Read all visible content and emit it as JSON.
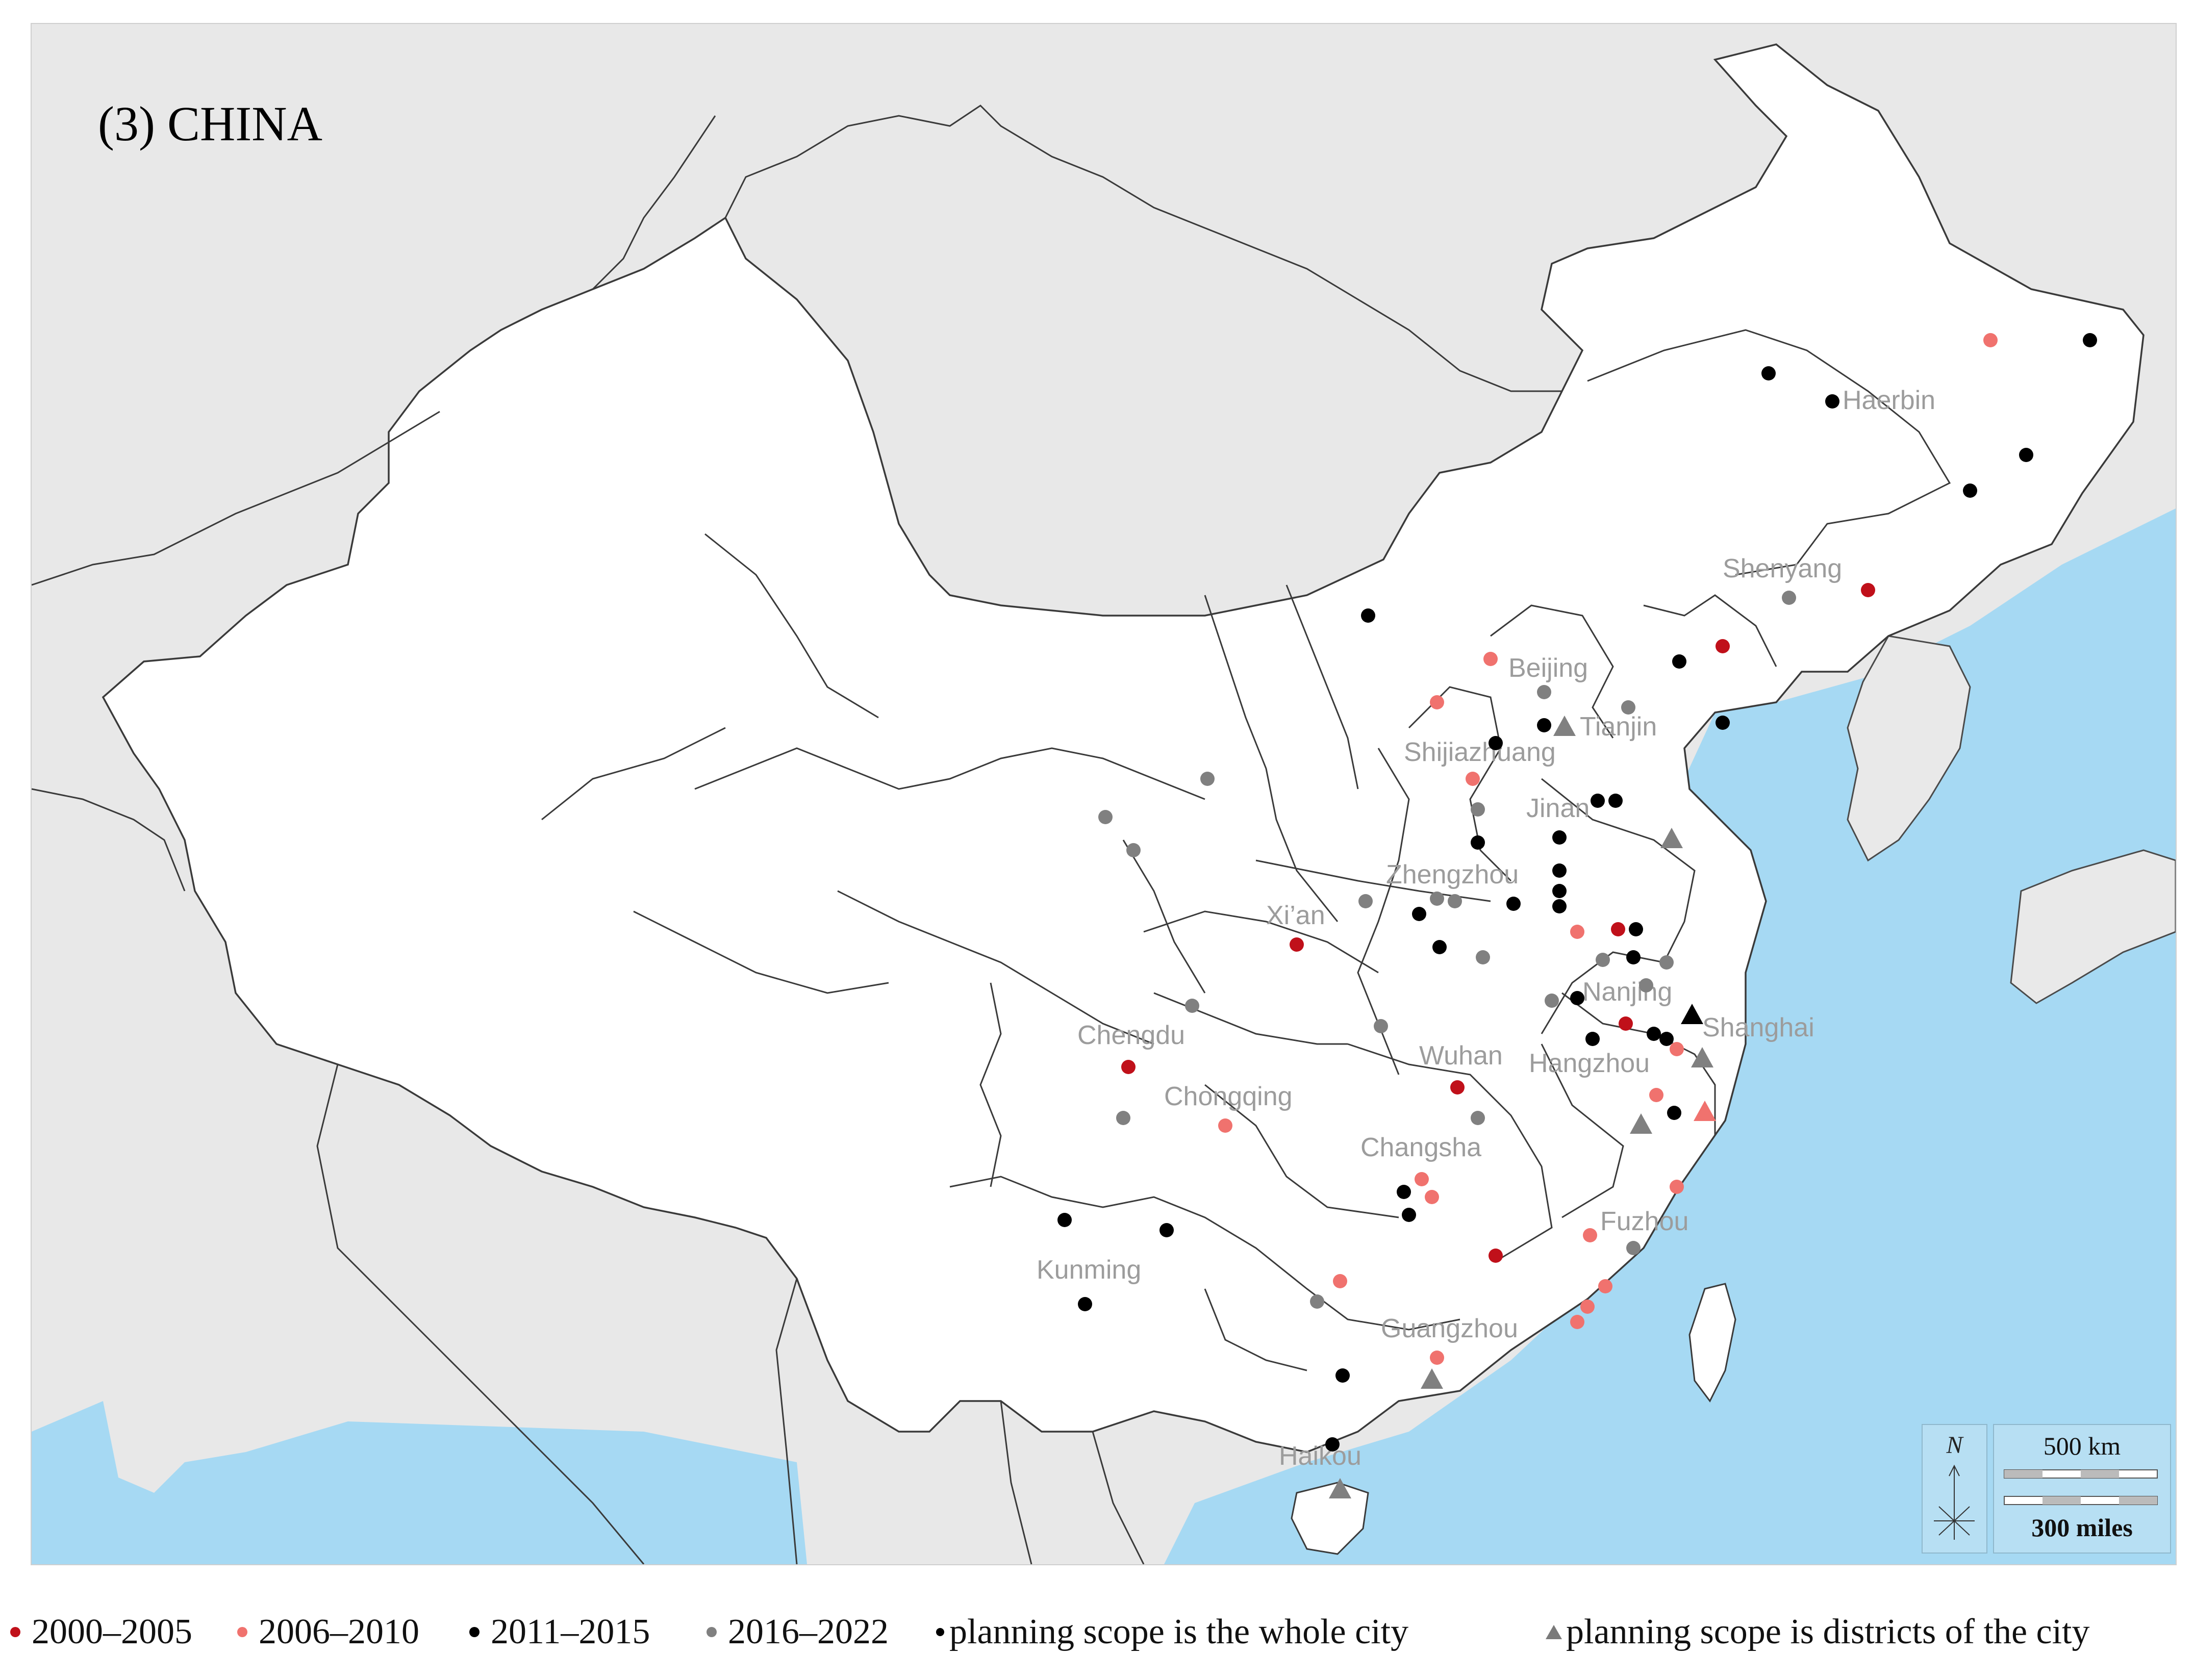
{
  "title": "(3) CHINA",
  "colors": {
    "period_2000_2005": "#c0101a",
    "period_2006_2010": "#f0726e",
    "period_2011_2015": "#000000",
    "period_2016_2022": "#808080",
    "sea": "#a6d9f3",
    "neighbor_land": "#e9e9e9",
    "china_land": "#ffffff",
    "label_gray": "#9c9c9c"
  },
  "city_labels": [
    {
      "name": "Haerbin"
    },
    {
      "name": "Shenyang"
    },
    {
      "name": "Beijing"
    },
    {
      "name": "Tianjin"
    },
    {
      "name": "Shijiazhuang"
    },
    {
      "name": "Jinan"
    },
    {
      "name": "Zhengzhou"
    },
    {
      "name": "Xi’an"
    },
    {
      "name": "Nanjing"
    },
    {
      "name": "Shanghai"
    },
    {
      "name": "Hangzhou"
    },
    {
      "name": "Chengdu"
    },
    {
      "name": "Wuhan"
    },
    {
      "name": "Chongqing"
    },
    {
      "name": "Changsha"
    },
    {
      "name": "Fuzhou"
    },
    {
      "name": "Kunming"
    },
    {
      "name": "Guangzhou"
    },
    {
      "name": "Haikou"
    }
  ],
  "compass": {
    "north_label": "N"
  },
  "scale_bar": {
    "km_label": "500 km",
    "miles_label": "300 miles"
  },
  "legend": {
    "p1": "2000–2005",
    "p2": "2006–2010",
    "p3": "2011–2015",
    "p4": "2016–2022",
    "whole_city": "planning scope is the whole city",
    "districts": "planning scope is districts of the city"
  }
}
